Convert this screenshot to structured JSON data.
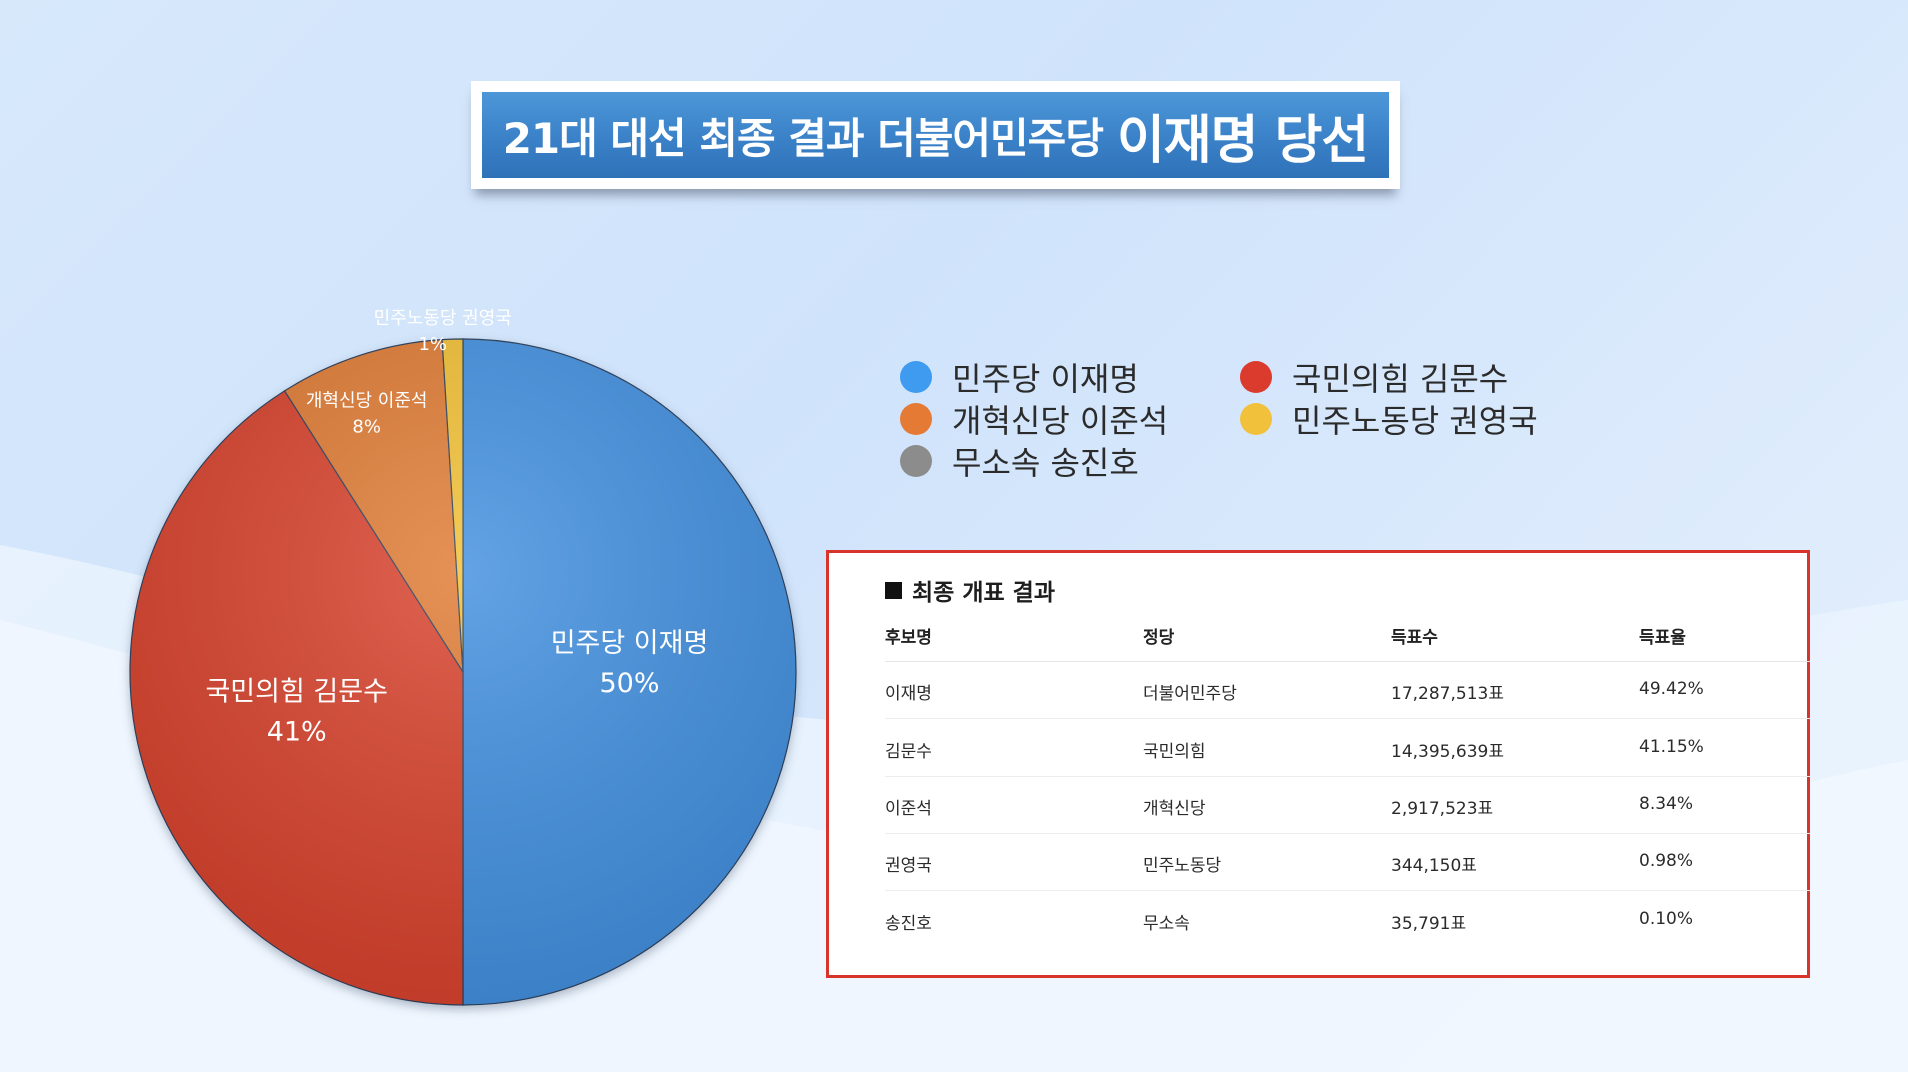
{
  "title": {
    "part1": "21대 대선 최종 결과 더불어민주당",
    "part2": "이재명 당선"
  },
  "chart_data": {
    "type": "pie",
    "slices": [
      {
        "label": "민주당 이재명",
        "value": 50,
        "value_label": "50%",
        "color": "#3f8fe0"
      },
      {
        "label": "국민의힘 김문수",
        "value": 41,
        "value_label": "41%",
        "color": "#d8402c"
      },
      {
        "label": "개혁신당 이준석",
        "value": 8,
        "value_label": "8%",
        "color": "#e07a32"
      },
      {
        "label": "민주노동당 권영국",
        "value": 1,
        "value_label": "1%",
        "color": "#f2c032"
      }
    ],
    "legend": [
      {
        "label": "민주당 이재명",
        "color": "#3f9bf0"
      },
      {
        "label": "국민의힘 김문수",
        "color": "#db3b2c"
      },
      {
        "label": "개혁신당 이준석",
        "color": "#e47a33"
      },
      {
        "label": "민주노동당 권영국",
        "color": "#f2c13c"
      },
      {
        "label": "무소속 송진호",
        "color": "#8c8c8c"
      }
    ],
    "legend_position": "top-right"
  },
  "results_table": {
    "heading": "최종 개표 결과",
    "columns": [
      "후보명",
      "정당",
      "득표수",
      "득표율"
    ],
    "rows": [
      [
        "이재명",
        "더불어민주당",
        "17,287,513표",
        "49.42%"
      ],
      [
        "김문수",
        "국민의힘",
        "14,395,639표",
        "41.15%"
      ],
      [
        "이준석",
        "개혁신당",
        "2,917,523표",
        "8.34%"
      ],
      [
        "권영국",
        "민주노동당",
        "344,150표",
        "0.98%"
      ],
      [
        "송진호",
        "무소속",
        "35,791표",
        "0.10%"
      ]
    ]
  }
}
